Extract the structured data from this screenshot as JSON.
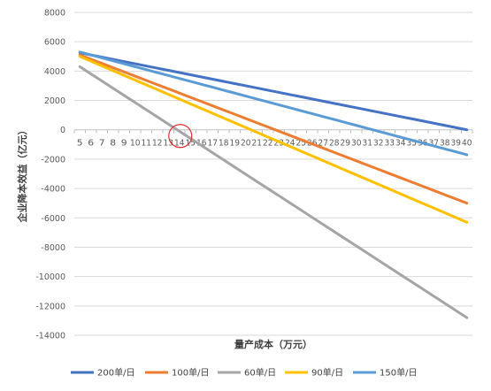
{
  "chart_data": {
    "type": "line",
    "title": "",
    "xlabel": "量产成本（万元）",
    "ylabel": "企业降本效益（亿元）",
    "ylim": [
      -14000,
      8000
    ],
    "yticks": [
      8000,
      6000,
      4000,
      2000,
      0,
      -2000,
      -4000,
      -6000,
      -8000,
      -10000,
      -12000,
      -14000
    ],
    "grid": true,
    "legend_position": "bottom",
    "categories": [
      "5",
      "6",
      "7",
      "8",
      "9",
      "10",
      "11",
      "12",
      "13",
      "14",
      "15",
      "16",
      "17",
      "18",
      "19",
      "20",
      "21",
      "22",
      "23",
      "24",
      "25",
      "26",
      "27",
      "28",
      "29",
      "30",
      "31",
      "32",
      "33",
      "34",
      "35",
      "36",
      "37",
      "38",
      "39",
      "40"
    ],
    "series": [
      {
        "name": "200单/日",
        "color": "#4472C4",
        "start": 5250,
        "end": 0
      },
      {
        "name": "100单/日",
        "color": "#ED7D31",
        "start": 5100,
        "end": -5000
      },
      {
        "name": "60单/日",
        "color": "#A5A5A5",
        "start": 4300,
        "end": -12800
      },
      {
        "name": "90单/日",
        "color": "#FFC000",
        "start": 5000,
        "end": -6300
      },
      {
        "name": "150单/日",
        "color": "#5B9BD5",
        "start": 5300,
        "end": -1700
      }
    ],
    "annotation": {
      "type": "circle",
      "category": "14",
      "y": 0,
      "color": "#E03030"
    }
  }
}
